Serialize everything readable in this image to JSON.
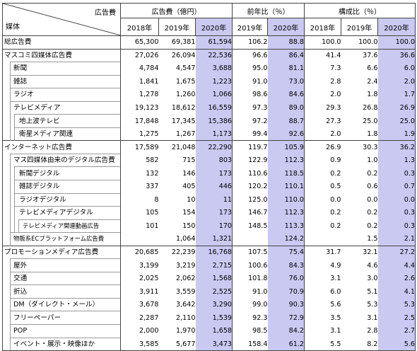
{
  "header": {
    "corner_top": "広告費",
    "corner_bottom": "媒体",
    "group_ad": "広告費（億円）",
    "group_yoy": "前年比（％）",
    "group_comp": "構成比（％）",
    "ad_years": [
      "2018年",
      "2019年",
      "2020年"
    ],
    "yoy_years": [
      "2019年",
      "2020年"
    ],
    "comp_years": [
      "2018年",
      "2019年",
      "2020年"
    ]
  },
  "rows": [
    {
      "label": "総広告費",
      "v": [
        "65,300",
        "69,381",
        "61,594",
        "106.2",
        "88.8",
        "100.0",
        "100.0",
        "100.0"
      ]
    },
    {
      "label": "マスコミ四媒体広告費",
      "v": [
        "27,026",
        "26,094",
        "22,536",
        "96.6",
        "86.4",
        "41.4",
        "37.6",
        "36.6"
      ]
    },
    {
      "label": "新聞",
      "v": [
        "4,784",
        "4,547",
        "3,688",
        "95.0",
        "81.1",
        "7.3",
        "6.6",
        "6.0"
      ]
    },
    {
      "label": "雑誌",
      "v": [
        "1,841",
        "1,675",
        "1,223",
        "91.0",
        "73.0",
        "2.8",
        "2.4",
        "2.0"
      ]
    },
    {
      "label": "ラジオ",
      "v": [
        "1,278",
        "1,260",
        "1,066",
        "98.6",
        "84.6",
        "2.0",
        "1.8",
        "1.7"
      ]
    },
    {
      "label": "テレビメディア",
      "v": [
        "19,123",
        "18,612",
        "16,559",
        "97.3",
        "89.0",
        "29.3",
        "26.8",
        "26.9"
      ]
    },
    {
      "label": "地上波テレビ",
      "v": [
        "17,848",
        "17,345",
        "15,386",
        "97.2",
        "88.7",
        "27.3",
        "25.0",
        "25.0"
      ]
    },
    {
      "label": "衛星メディア関連",
      "v": [
        "1,275",
        "1,267",
        "1,173",
        "99.4",
        "92.6",
        "2.0",
        "1.8",
        "1.9"
      ]
    },
    {
      "label": "インターネット広告費",
      "v": [
        "17,589",
        "21,048",
        "22,290",
        "119.7",
        "105.9",
        "26.9",
        "30.3",
        "36.2"
      ]
    },
    {
      "label": "マス四媒体由来のデジタル広告費",
      "v": [
        "582",
        "715",
        "803",
        "122.9",
        "112.3",
        "0.9",
        "1.0",
        "1.3"
      ]
    },
    {
      "label": "新聞デジタル",
      "v": [
        "132",
        "146",
        "173",
        "110.6",
        "118.5",
        "0.2",
        "0.2",
        "0.3"
      ]
    },
    {
      "label": "雑誌デジタル",
      "v": [
        "337",
        "405",
        "446",
        "120.2",
        "110.1",
        "0.5",
        "0.6",
        "0.7"
      ]
    },
    {
      "label": "ラジオデジタル",
      "v": [
        "8",
        "10",
        "11",
        "125.0",
        "110.0",
        "0.0",
        "0.0",
        "0.0"
      ]
    },
    {
      "label": "テレビメディアデジタル",
      "v": [
        "105",
        "154",
        "173",
        "146.7",
        "112.3",
        "0.2",
        "0.2",
        "0.3"
      ]
    },
    {
      "label": "テレビメディア関連動画広告",
      "v": [
        "101",
        "150",
        "170",
        "148.5",
        "113.3",
        "0.2",
        "0.2",
        "0.3"
      ]
    },
    {
      "label": "物販系ECプラットフォーム広告費",
      "v": [
        "",
        "1,064",
        "1,321",
        "",
        "124.2",
        "",
        "1.5",
        "2.1"
      ]
    },
    {
      "label": "プロモーションメディア広告費",
      "v": [
        "20,685",
        "22,239",
        "16,768",
        "107.5",
        "75.4",
        "31.7",
        "32.1",
        "27.2"
      ]
    },
    {
      "label": "屋外",
      "v": [
        "3,199",
        "3,219",
        "2,715",
        "100.6",
        "84.3",
        "4.9",
        "4.6",
        "4.4"
      ]
    },
    {
      "label": "交通",
      "v": [
        "2,025",
        "2,062",
        "1,568",
        "101.8",
        "76.0",
        "3.1",
        "3.0",
        "2.6"
      ]
    },
    {
      "label": "折込",
      "v": [
        "3,911",
        "3,559",
        "2,525",
        "91.0",
        "70.9",
        "6.0",
        "5.1",
        "4.1"
      ]
    },
    {
      "label": "DM（ダイレクト・メール）",
      "v": [
        "3,678",
        "3,642",
        "3,290",
        "99.0",
        "90.3",
        "5.6",
        "5.3",
        "5.3"
      ]
    },
    {
      "label": "フリーペーパー",
      "v": [
        "2,287",
        "2,110",
        "1,539",
        "92.3",
        "72.9",
        "3.5",
        "3.1",
        "2.5"
      ]
    },
    {
      "label": "POP",
      "v": [
        "2,000",
        "1,970",
        "1,658",
        "98.5",
        "84.2",
        "3.1",
        "2.8",
        "2.7"
      ]
    },
    {
      "label": "イベント・展示・映像ほか",
      "v": [
        "3,585",
        "5,677",
        "3,473",
        "158.4",
        "61.2",
        "5.5",
        "8.2",
        "5.6"
      ]
    }
  ]
}
